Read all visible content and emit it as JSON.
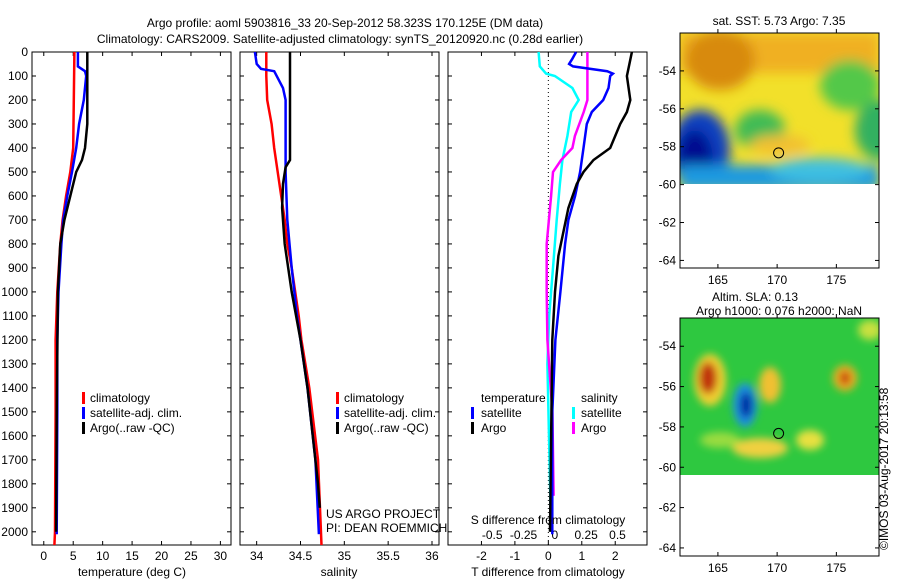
{
  "title_line1": "Argo profile: aoml 5903816_33 20-Sep-2012 58.323S 170.125E (DM data)",
  "title_line2": "Climatology: CARS2009. Satellite-adjusted climatology: synTS_20120920.nc (0.28d earlier)",
  "credit": "US ARGO PROJECT",
  "pi": "PI: DEAN ROEMMICH",
  "copyright": "©IMOS 03-Aug-2017 20:13:58",
  "colors": {
    "climatology": "#ff0000",
    "satellite": "#0000ff",
    "argo": "#000000",
    "s_satellite": "#00ffff",
    "s_argo": "#ff00ff"
  },
  "chart_data": [
    {
      "type": "line",
      "xlabel": "temperature (deg C)",
      "ylabel": "",
      "xlim": [
        -2,
        31.8
      ],
      "ylim": [
        2055,
        0
      ],
      "xticks": [
        0,
        5,
        10,
        15,
        20,
        25,
        30
      ],
      "yticks": [
        0,
        100,
        200,
        300,
        400,
        500,
        600,
        700,
        800,
        900,
        1000,
        1100,
        1200,
        1300,
        1400,
        1500,
        1600,
        1700,
        1800,
        1900,
        2000
      ],
      "legend": [
        "climatology",
        "satellite-adj. clim.",
        "Argo(..raw -QC)"
      ],
      "series": [
        {
          "name": "climatology",
          "depth": [
            0,
            400,
            500,
            600,
            700,
            800,
            1000,
            1200,
            1500,
            2000,
            2055
          ],
          "values": [
            5.2,
            5.0,
            4.5,
            3.8,
            3.2,
            2.8,
            2.3,
            2.0,
            2.0,
            1.9,
            1.8
          ]
        },
        {
          "name": "satellite-adj. clim.",
          "depth": [
            0,
            60,
            80,
            100,
            200,
            300,
            400,
            500,
            600,
            700,
            800,
            1000,
            1200,
            1500,
            2010
          ],
          "values": [
            5.8,
            5.8,
            7.0,
            7.2,
            6.8,
            6.0,
            5.5,
            4.8,
            4.0,
            3.3,
            3.0,
            2.5,
            2.3,
            2.3,
            2.2
          ]
        },
        {
          "name": "Argo(..raw -QC)",
          "depth": [
            0,
            300,
            400,
            450,
            500,
            600,
            700,
            800,
            1000,
            1500,
            2000
          ],
          "values": [
            7.4,
            7.4,
            7.0,
            6.5,
            5.5,
            4.5,
            3.5,
            2.8,
            2.4,
            2.2,
            2.1
          ]
        }
      ]
    },
    {
      "type": "line",
      "xlabel": "salinity",
      "xlim": [
        33.81,
        36.08
      ],
      "ylim": [
        2055,
        0
      ],
      "xticks": [
        34,
        34.5,
        35,
        35.5,
        36
      ],
      "legend": [
        "climatology",
        "satellite-adj. clim.",
        "Argo(..raw -QC)"
      ],
      "series": [
        {
          "name": "climatology",
          "depth": [
            0,
            100,
            200,
            300,
            400,
            500,
            600,
            700,
            800,
            900,
            1000,
            1100,
            1200,
            1400,
            1700,
            2055
          ],
          "values": [
            34.11,
            34.11,
            34.12,
            34.17,
            34.2,
            34.24,
            34.28,
            34.32,
            34.35,
            34.4,
            34.44,
            34.48,
            34.51,
            34.6,
            34.7,
            34.74
          ]
        },
        {
          "name": "satellite-adj. clim.",
          "depth": [
            0,
            50,
            70,
            80,
            150,
            200,
            250,
            500,
            700,
            900,
            1100,
            1200,
            1400,
            1700,
            2010
          ],
          "values": [
            33.98,
            34.0,
            34.05,
            34.2,
            34.3,
            34.33,
            34.33,
            34.33,
            34.35,
            34.4,
            34.46,
            34.5,
            34.58,
            34.67,
            34.71
          ]
        },
        {
          "name": "Argo(..raw -QC)",
          "depth": [
            0,
            300,
            450,
            480,
            550,
            650,
            800,
            1000,
            1200,
            1400,
            1800,
            1900
          ],
          "values": [
            34.38,
            34.38,
            34.38,
            34.33,
            34.3,
            34.29,
            34.32,
            34.4,
            34.5,
            34.58,
            34.7,
            34.72
          ]
        }
      ]
    },
    {
      "type": "line",
      "xlabel": "T difference from climatology",
      "x2label": "S difference from climatology",
      "xlim": [
        -3,
        2.95
      ],
      "ylim": [
        2055,
        0
      ],
      "xticks": [
        -2,
        -1,
        0,
        1,
        2
      ],
      "x2ticks": [
        -0.5,
        -0.25,
        0,
        0.25,
        0.5
      ],
      "legend_temperature": {
        "title": "temperature",
        "items": [
          "satellite",
          "Argo"
        ]
      },
      "legend_salinity": {
        "title": "salinity",
        "items": [
          "satellite",
          "Argo"
        ]
      },
      "series_T": [
        {
          "name": "satellite",
          "depth": [
            0,
            30,
            50,
            60,
            80,
            90,
            100,
            150,
            200,
            250,
            300,
            400,
            500,
            600,
            700,
            800,
            1000,
            1200,
            1500,
            2010
          ],
          "values": [
            0.83,
            0.71,
            0.62,
            0.74,
            1.76,
            1.93,
            1.85,
            1.8,
            1.64,
            1.3,
            1.15,
            1.05,
            0.95,
            0.8,
            0.6,
            0.5,
            0.36,
            0.21,
            0.12,
            0.12
          ]
        },
        {
          "name": "Argo",
          "depth": [
            0,
            100,
            200,
            250,
            300,
            400,
            450,
            500,
            550,
            650,
            750,
            850,
            1000,
            1200,
            2000
          ],
          "values": [
            2.5,
            2.35,
            2.45,
            2.35,
            2.15,
            1.85,
            1.35,
            1.05,
            0.85,
            0.6,
            0.45,
            0.3,
            0.2,
            0.12,
            0.05
          ]
        }
      ],
      "series_S": [
        {
          "name": "satellite",
          "depth": [
            0,
            60,
            90,
            100,
            150,
            200,
            250,
            350,
            450,
            550,
            700,
            900,
            1100,
            1300,
            2000
          ],
          "values": [
            -0.13,
            -0.12,
            -0.07,
            0.0,
            0.14,
            0.19,
            0.13,
            0.1,
            0.06,
            0.04,
            0.015,
            -0.015,
            -0.045,
            -0.06,
            -0.03
          ]
        },
        {
          "name": "Argo",
          "depth": [
            0,
            200,
            250,
            350,
            400,
            450,
            500,
            600,
            800,
            1000,
            1200,
            1500,
            1850
          ],
          "values": [
            0.26,
            0.26,
            0.23,
            0.16,
            0.14,
            0.05,
            -0.015,
            -0.03,
            -0.065,
            -0.065,
            -0.06,
            -0.02,
            -0.01
          ]
        }
      ]
    }
  ],
  "maps": [
    {
      "title": "sat. SST: 5.73 Argo: 7.35",
      "lat_ticks": [
        -54,
        -56,
        -58,
        -60,
        -62,
        -64
      ],
      "lon_ticks": [
        165,
        170,
        175
      ],
      "marker": {
        "lat": -58.323,
        "lon": 170.125
      }
    },
    {
      "title": "Altim. SLA: 0.13",
      "subtitle": "Argo h1000: 0.076 h2000: NaN",
      "lat_ticks": [
        -54,
        -56,
        -58,
        -60,
        -62,
        -64
      ],
      "lon_ticks": [
        165,
        170,
        175
      ],
      "marker": {
        "lat": -58.323,
        "lon": 170.125
      }
    }
  ]
}
